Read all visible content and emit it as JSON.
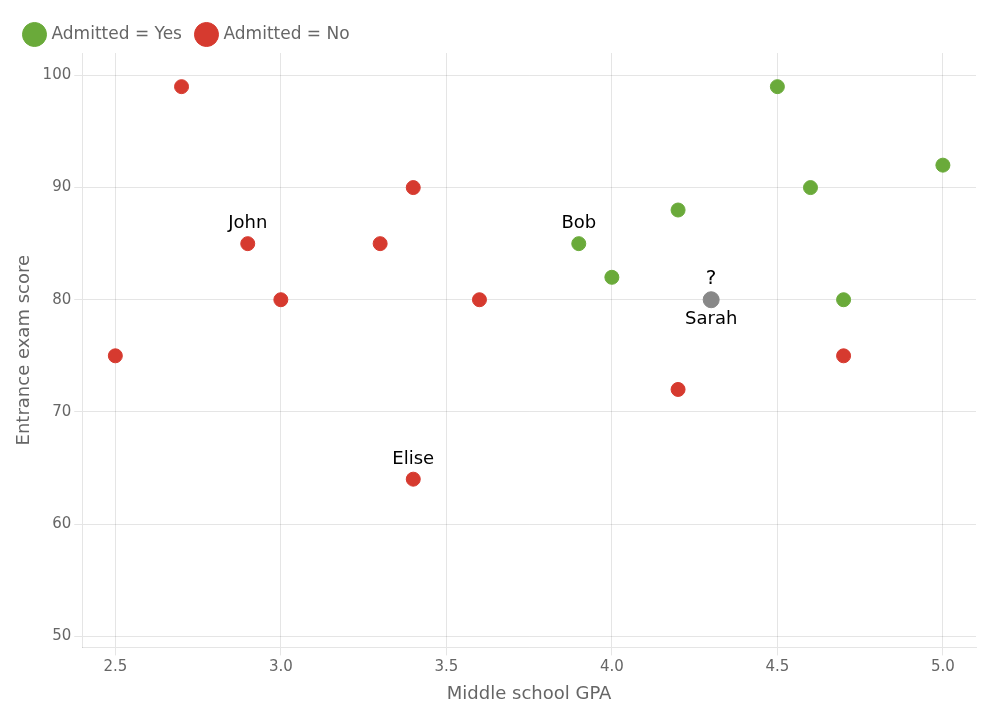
{
  "chart_data": {
    "type": "scatter",
    "xlabel": "Middle school GPA",
    "ylabel": "Entrance exam score",
    "xlim": [
      2.4,
      5.1
    ],
    "ylim": [
      49,
      102
    ],
    "xticks": [
      2.5,
      {
        "value": 3.0,
        "label": "3.0"
      },
      3.5,
      {
        "value": 4.0,
        "label": "4.0"
      },
      4.5,
      {
        "value": 5.0,
        "label": "5.0"
      }
    ],
    "yticks": [
      50,
      60,
      70,
      80,
      90,
      100
    ],
    "grid": true,
    "legend": "upper left",
    "series": [
      {
        "name": "Admitted = Yes",
        "color": "#6aaa3a",
        "x": [
          3.9,
          4.0,
          4.2,
          4.5,
          4.6,
          4.7,
          5.0
        ],
        "values": [
          85,
          82,
          88,
          99,
          90,
          80,
          92
        ]
      },
      {
        "name": "Admitted = No",
        "color": "#d63a2f",
        "x": [
          2.5,
          2.7,
          2.9,
          3.0,
          3.3,
          3.4,
          3.6,
          3.4,
          4.2,
          4.7
        ],
        "values": [
          75,
          99,
          85,
          80,
          85,
          90,
          80,
          64,
          72,
          75
        ]
      },
      {
        "color": "#888888",
        "x": [
          4.3
        ],
        "values": [
          80
        ]
      }
    ],
    "annotations": [
      {
        "text": "John",
        "x": 2.9,
        "y": 85
      },
      {
        "text": "Bob",
        "x": 3.9,
        "y": 85
      },
      {
        "text": "Elise",
        "x": 3.4,
        "y": 64
      },
      {
        "text": "?",
        "x": 4.3,
        "y": 80
      },
      {
        "text": "Sarah",
        "x": 4.3,
        "y": 80
      }
    ]
  }
}
